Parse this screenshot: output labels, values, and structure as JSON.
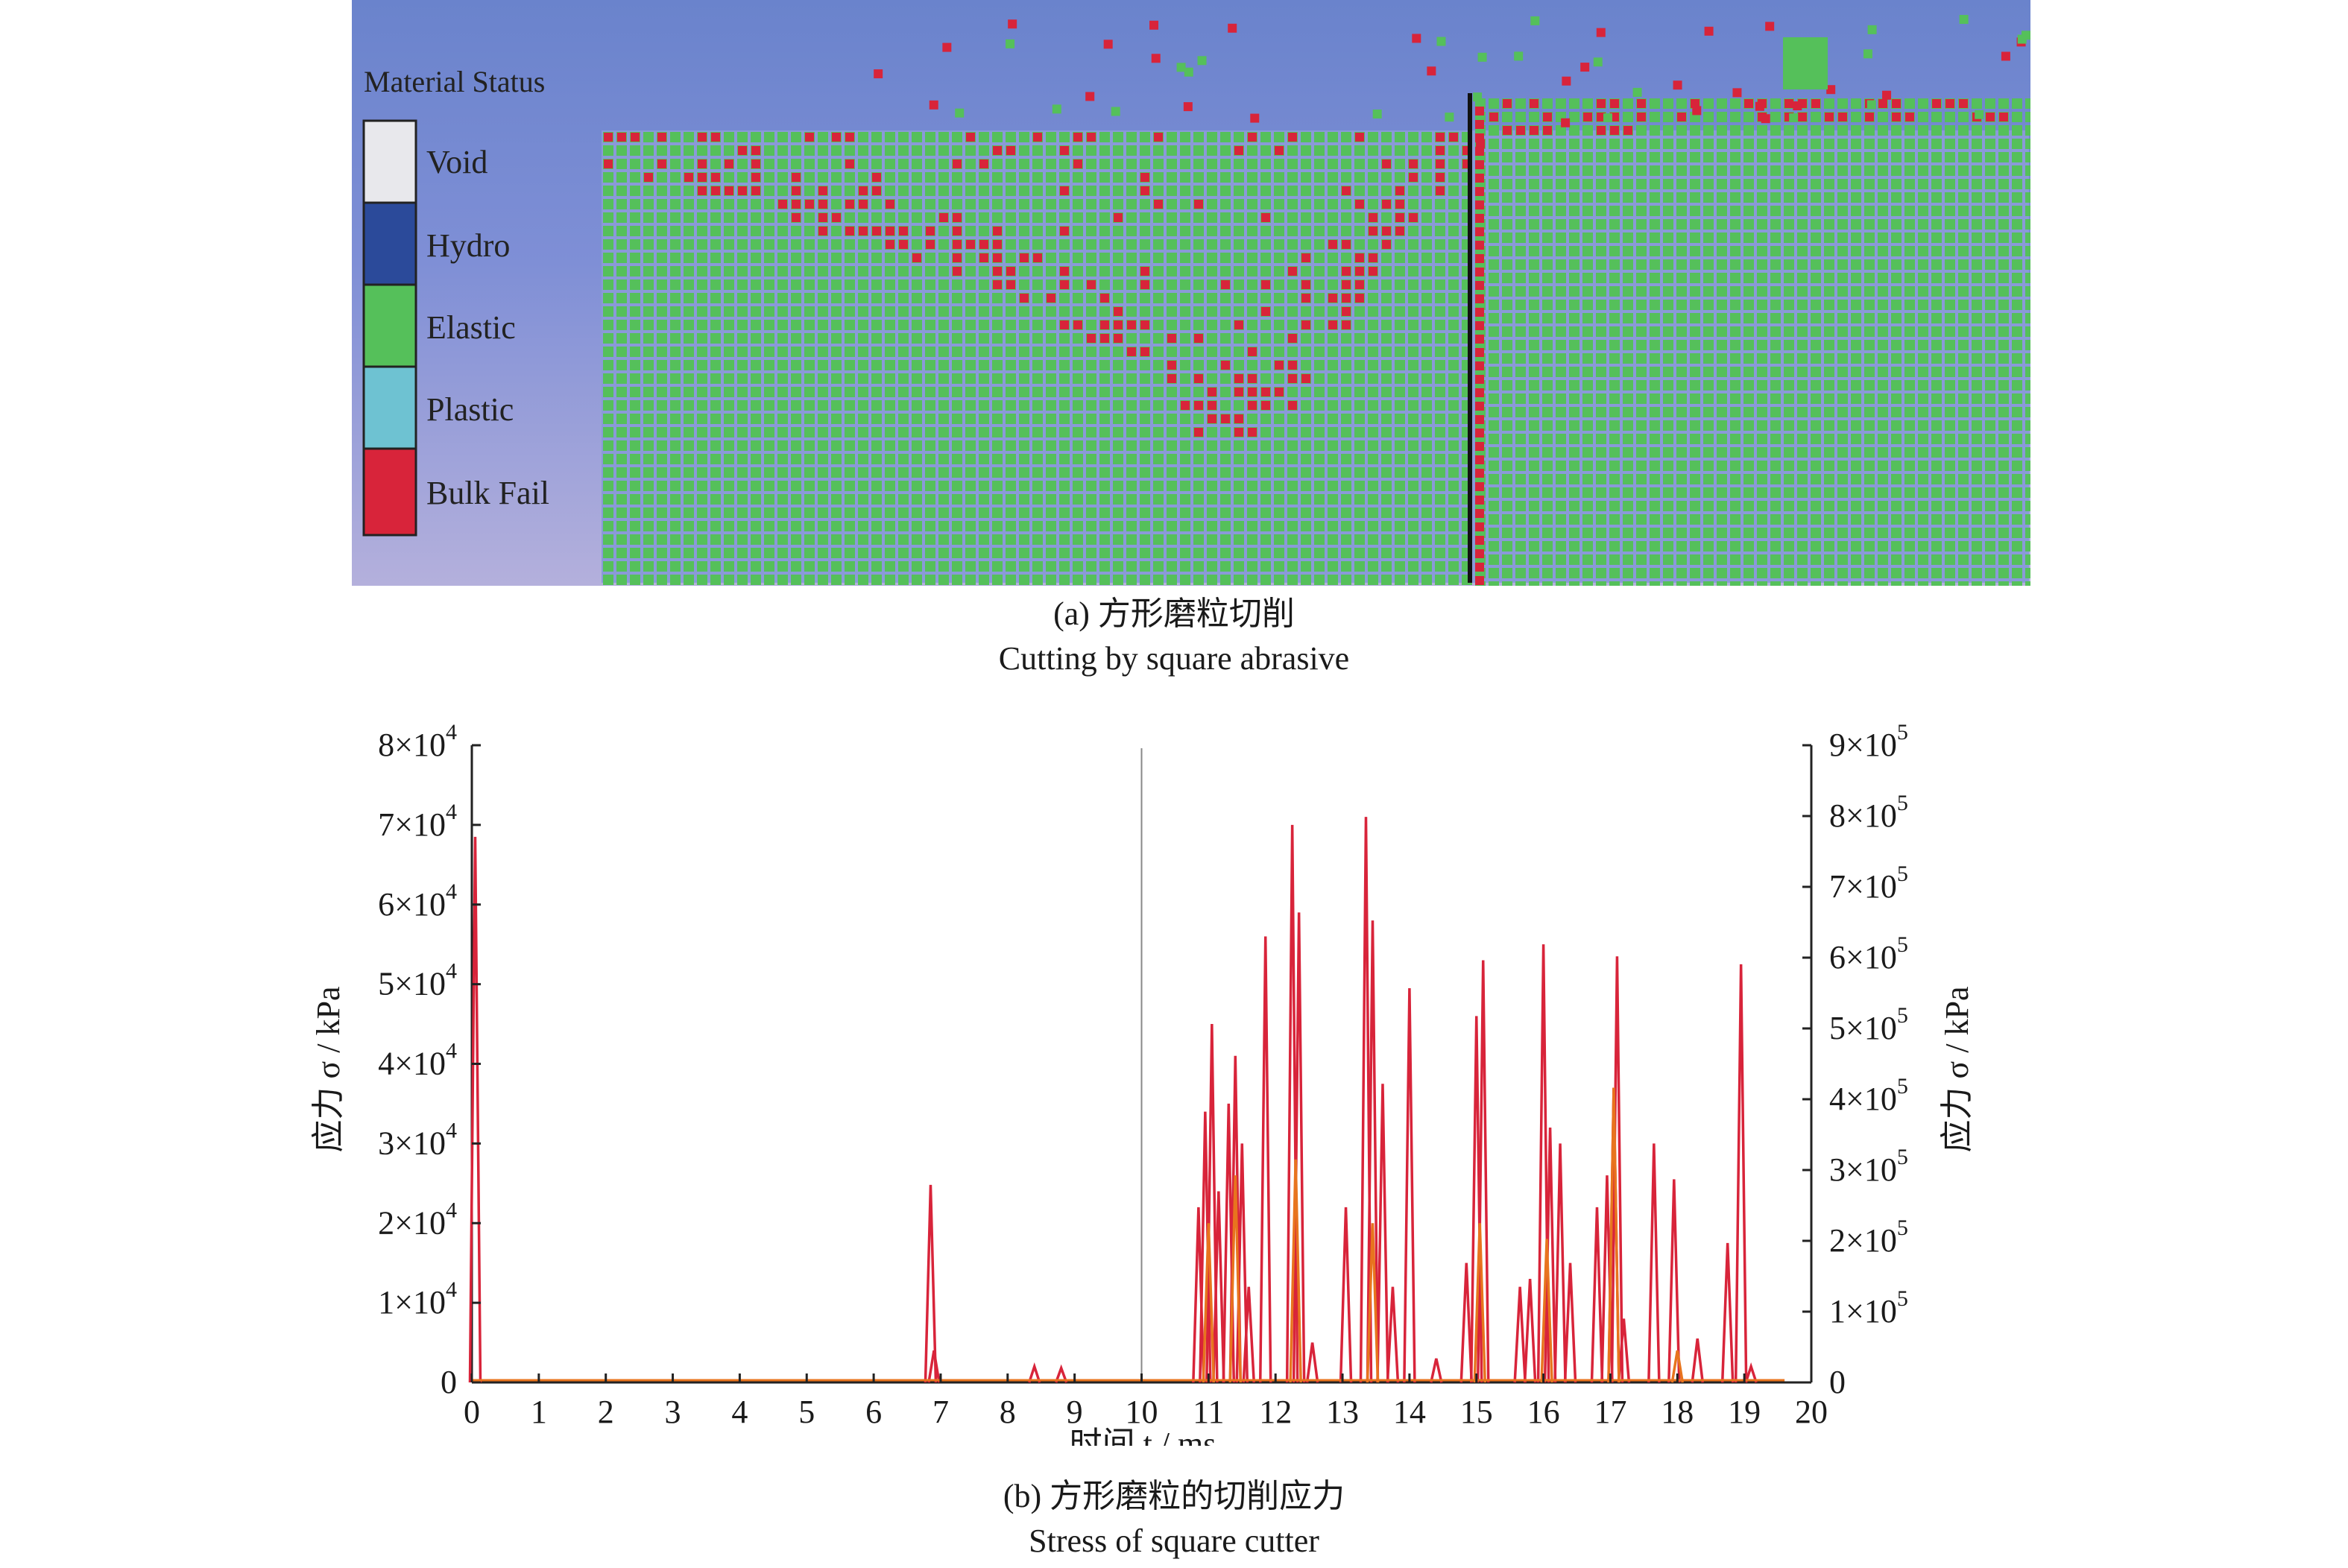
{
  "panel_a": {
    "legend": {
      "title": "Material Status",
      "items": [
        {
          "label": "Void",
          "color": "#e8e8ec"
        },
        {
          "label": "Hydro",
          "color": "#2b4a9a"
        },
        {
          "label": "Elastic",
          "color": "#55c05a"
        },
        {
          "label": "Plastic",
          "color": "#6ec2d2"
        },
        {
          "label": "Bulk Fail",
          "color": "#d8243a"
        }
      ]
    },
    "colors": {
      "background_top": "#6a83cc",
      "material": "#55c05a",
      "failed": "#d8243a",
      "grid_line": "#8a9ad8",
      "cutter_line": "#111111"
    },
    "caption_zh": "(a) 方形磨粒切削",
    "caption_en": "Cutting by square abrasive"
  },
  "panel_b": {
    "caption_zh": "(b) 方形磨粒的切削应力",
    "caption_en": "Stress of square cutter"
  },
  "chart_data": {
    "type": "line",
    "xlabel": "时间 t / ms",
    "ylabel": "应力 σ / kPa",
    "ylabel_right": "应力 σ / kPa",
    "xlim": [
      0,
      20
    ],
    "ylim": [
      0,
      80000
    ],
    "ylim_right": [
      0,
      900000
    ],
    "x_ticks": [
      "0",
      "1",
      "2",
      "3",
      "4",
      "5",
      "6",
      "7",
      "8",
      "9",
      "10",
      "11",
      "12",
      "13",
      "14",
      "15",
      "16",
      "17",
      "18",
      "19",
      "20"
    ],
    "y_ticks": [
      {
        "value": 0,
        "mantissa": "0",
        "exp": ""
      },
      {
        "value": 10000,
        "mantissa": "1×10",
        "exp": "4"
      },
      {
        "value": 20000,
        "mantissa": "2×10",
        "exp": "4"
      },
      {
        "value": 30000,
        "mantissa": "3×10",
        "exp": "4"
      },
      {
        "value": 40000,
        "mantissa": "4×10",
        "exp": "4"
      },
      {
        "value": 50000,
        "mantissa": "5×10",
        "exp": "4"
      },
      {
        "value": 60000,
        "mantissa": "6×10",
        "exp": "4"
      },
      {
        "value": 70000,
        "mantissa": "7×10",
        "exp": "4"
      },
      {
        "value": 80000,
        "mantissa": "8×10",
        "exp": "4"
      }
    ],
    "y_ticks_right": [
      {
        "value": 0,
        "mantissa": "0",
        "exp": ""
      },
      {
        "value": 100000,
        "mantissa": "1×10",
        "exp": "5"
      },
      {
        "value": 200000,
        "mantissa": "2×10",
        "exp": "5"
      },
      {
        "value": 300000,
        "mantissa": "3×10",
        "exp": "5"
      },
      {
        "value": 400000,
        "mantissa": "4×10",
        "exp": "5"
      },
      {
        "value": 500000,
        "mantissa": "5×10",
        "exp": "5"
      },
      {
        "value": 600000,
        "mantissa": "6×10",
        "exp": "5"
      },
      {
        "value": 700000,
        "mantissa": "7×10",
        "exp": "5"
      },
      {
        "value": 800000,
        "mantissa": "8×10",
        "exp": "5"
      },
      {
        "value": 900000,
        "mantissa": "9×10",
        "exp": "5"
      }
    ],
    "vertical_marker_x": 10,
    "grid": false,
    "series": [
      {
        "color": "#d8243a",
        "spikes": [
          [
            0.05,
            68500
          ],
          [
            6.85,
            24800
          ],
          [
            6.9,
            4000
          ],
          [
            8.4,
            2000
          ],
          [
            8.8,
            1800
          ],
          [
            10.85,
            22000
          ],
          [
            10.95,
            34000
          ],
          [
            11.05,
            45000
          ],
          [
            11.15,
            24000
          ],
          [
            11.3,
            35000
          ],
          [
            11.4,
            41000
          ],
          [
            11.5,
            30000
          ],
          [
            11.6,
            12000
          ],
          [
            11.85,
            56000
          ],
          [
            12.25,
            70000
          ],
          [
            12.35,
            59000
          ],
          [
            12.55,
            5000
          ],
          [
            13.05,
            22000
          ],
          [
            13.35,
            71000
          ],
          [
            13.45,
            58000
          ],
          [
            13.6,
            37500
          ],
          [
            13.75,
            12000
          ],
          [
            14.0,
            49500
          ],
          [
            14.4,
            3000
          ],
          [
            14.85,
            15000
          ],
          [
            15.0,
            46000
          ],
          [
            15.1,
            53000
          ],
          [
            15.65,
            12000
          ],
          [
            15.8,
            13000
          ],
          [
            16.0,
            55000
          ],
          [
            16.1,
            32000
          ],
          [
            16.25,
            30000
          ],
          [
            16.4,
            15000
          ],
          [
            16.8,
            22000
          ],
          [
            16.95,
            26000
          ],
          [
            17.05,
            37000
          ],
          [
            17.1,
            53500
          ],
          [
            17.2,
            8000
          ],
          [
            17.65,
            30000
          ],
          [
            17.95,
            25500
          ],
          [
            18.3,
            5500
          ],
          [
            18.75,
            17500
          ],
          [
            18.95,
            52500
          ],
          [
            19.1,
            2000
          ]
        ]
      },
      {
        "color": "#e8741e",
        "spikes": [
          [
            11.0,
            20000
          ],
          [
            11.4,
            26000
          ],
          [
            12.3,
            28000
          ],
          [
            13.45,
            20000
          ],
          [
            15.05,
            20000
          ],
          [
            16.05,
            18000
          ],
          [
            17.05,
            37000
          ],
          [
            18.0,
            4000
          ]
        ]
      }
    ]
  }
}
